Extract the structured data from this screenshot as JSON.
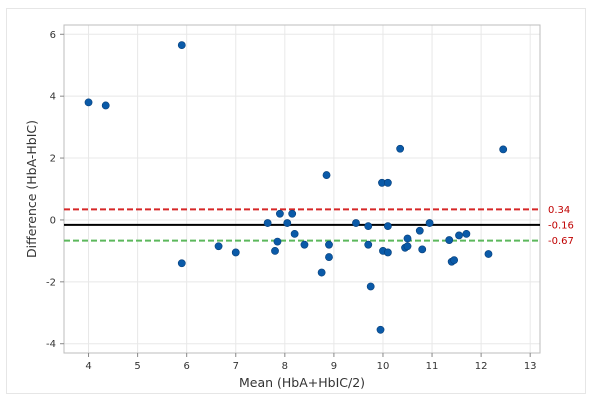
{
  "chart_data": {
    "type": "scatter",
    "title": "",
    "xlabel": "Mean (HbA+HbIC/2)",
    "ylabel": "Difference (HbA-HbIC)",
    "xlim": [
      3.5,
      13.2
    ],
    "ylim": [
      -4.3,
      6.3
    ],
    "x_ticks": [
      4,
      5,
      6,
      7,
      8,
      9,
      10,
      11,
      12,
      13
    ],
    "y_ticks": [
      -4,
      -2,
      0,
      2,
      4,
      6
    ],
    "grid": true,
    "colors": {
      "points": "#0a5aa8",
      "upper_limit": "#d62728",
      "mean_line": "#000000",
      "lower_limit": "#5cb85c",
      "label": "#c00000",
      "grid": "#e8e8e8"
    },
    "reference_lines": [
      {
        "key": "upper",
        "value": 0.34,
        "label": "0.34",
        "style": "dashed",
        "color": "#d62728"
      },
      {
        "key": "mean",
        "value": -0.16,
        "label": "-0.16",
        "style": "solid",
        "color": "#000000"
      },
      {
        "key": "lower",
        "value": -0.67,
        "label": "-0.67",
        "style": "dashed",
        "color": "#5cb85c"
      }
    ],
    "points": [
      {
        "x": 4.0,
        "y": 3.8
      },
      {
        "x": 4.35,
        "y": 3.7
      },
      {
        "x": 5.9,
        "y": 5.65
      },
      {
        "x": 5.9,
        "y": -1.4
      },
      {
        "x": 6.65,
        "y": -0.85
      },
      {
        "x": 7.0,
        "y": -1.05
      },
      {
        "x": 7.65,
        "y": -0.1
      },
      {
        "x": 7.8,
        "y": -1.0
      },
      {
        "x": 7.85,
        "y": -0.7
      },
      {
        "x": 7.9,
        "y": 0.2
      },
      {
        "x": 8.05,
        "y": -0.1
      },
      {
        "x": 8.15,
        "y": 0.2
      },
      {
        "x": 8.2,
        "y": -0.45
      },
      {
        "x": 8.4,
        "y": -0.8
      },
      {
        "x": 8.75,
        "y": -1.7
      },
      {
        "x": 8.85,
        "y": 1.45
      },
      {
        "x": 8.9,
        "y": -0.8
      },
      {
        "x": 8.9,
        "y": -1.2
      },
      {
        "x": 9.45,
        "y": -0.1
      },
      {
        "x": 9.7,
        "y": -0.2
      },
      {
        "x": 9.7,
        "y": -0.8
      },
      {
        "x": 9.75,
        "y": -2.15
      },
      {
        "x": 9.95,
        "y": -3.55
      },
      {
        "x": 9.98,
        "y": 1.2
      },
      {
        "x": 10.0,
        "y": -1.0
      },
      {
        "x": 10.1,
        "y": 1.2
      },
      {
        "x": 10.1,
        "y": -0.2
      },
      {
        "x": 10.1,
        "y": -1.05
      },
      {
        "x": 10.35,
        "y": 2.3
      },
      {
        "x": 10.45,
        "y": -0.9
      },
      {
        "x": 10.5,
        "y": -0.6
      },
      {
        "x": 10.5,
        "y": -0.85
      },
      {
        "x": 10.75,
        "y": -0.35
      },
      {
        "x": 10.8,
        "y": -0.95
      },
      {
        "x": 10.95,
        "y": -0.1
      },
      {
        "x": 11.35,
        "y": -0.65
      },
      {
        "x": 11.4,
        "y": -1.35
      },
      {
        "x": 11.45,
        "y": -1.3
      },
      {
        "x": 11.55,
        "y": -0.5
      },
      {
        "x": 11.7,
        "y": -0.45
      },
      {
        "x": 12.15,
        "y": -1.1
      },
      {
        "x": 12.45,
        "y": 2.28
      }
    ]
  }
}
